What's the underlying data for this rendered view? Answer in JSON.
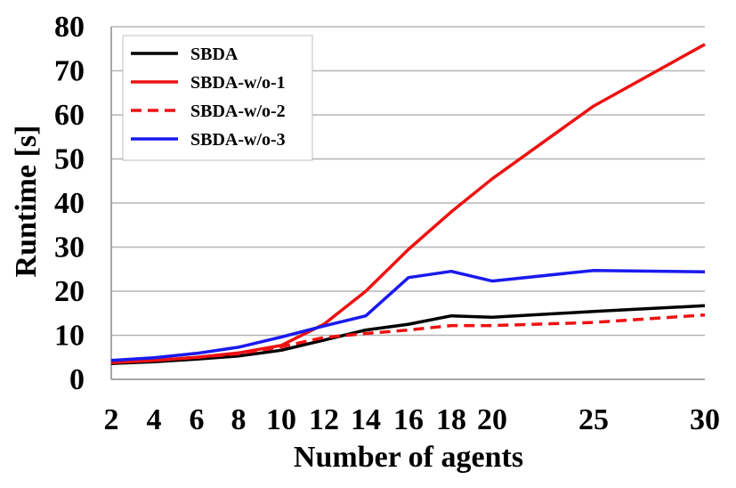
{
  "chart_data": {
    "type": "line",
    "title": "",
    "xlabel": "Number of agents",
    "ylabel": "Runtime [s]",
    "x": [
      2,
      4,
      6,
      8,
      10,
      12,
      14,
      16,
      18,
      20,
      25,
      30
    ],
    "x_tick_labels": [
      "2",
      "4",
      "6",
      "8",
      "10",
      "12",
      "14",
      "16",
      "18",
      "20",
      "25",
      "30"
    ],
    "ylim": [
      0,
      80
    ],
    "y_ticks": [
      0,
      10,
      20,
      30,
      40,
      50,
      60,
      70,
      80
    ],
    "grid": "horizontal",
    "legend_position": "top-left",
    "series": [
      {
        "name": "SBDA",
        "color": "#000000",
        "dash": "solid",
        "values": [
          3.6,
          4.0,
          4.6,
          5.3,
          6.6,
          8.9,
          11.2,
          12.5,
          14.4,
          14.1,
          15.4,
          16.7
        ]
      },
      {
        "name": "SBDA-w/o-1",
        "color": "#ee1111",
        "dash": "solid",
        "values": [
          3.8,
          4.3,
          5.0,
          6.0,
          7.7,
          12.5,
          20.0,
          29.5,
          38.0,
          45.5,
          62.0,
          76.0
        ]
      },
      {
        "name": "SBDA-w/o-2",
        "color": "#ee1111",
        "dash": "dashed",
        "values": [
          4.0,
          4.3,
          5.0,
          5.8,
          7.4,
          9.5,
          10.4,
          11.2,
          12.2,
          12.2,
          12.9,
          14.6
        ]
      },
      {
        "name": "SBDA-w/o-3",
        "color": "#1a1aee",
        "dash": "solid",
        "values": [
          4.3,
          4.9,
          5.9,
          7.3,
          9.6,
          12.1,
          14.4,
          23.1,
          24.5,
          22.3,
          24.7,
          24.4
        ]
      }
    ]
  }
}
